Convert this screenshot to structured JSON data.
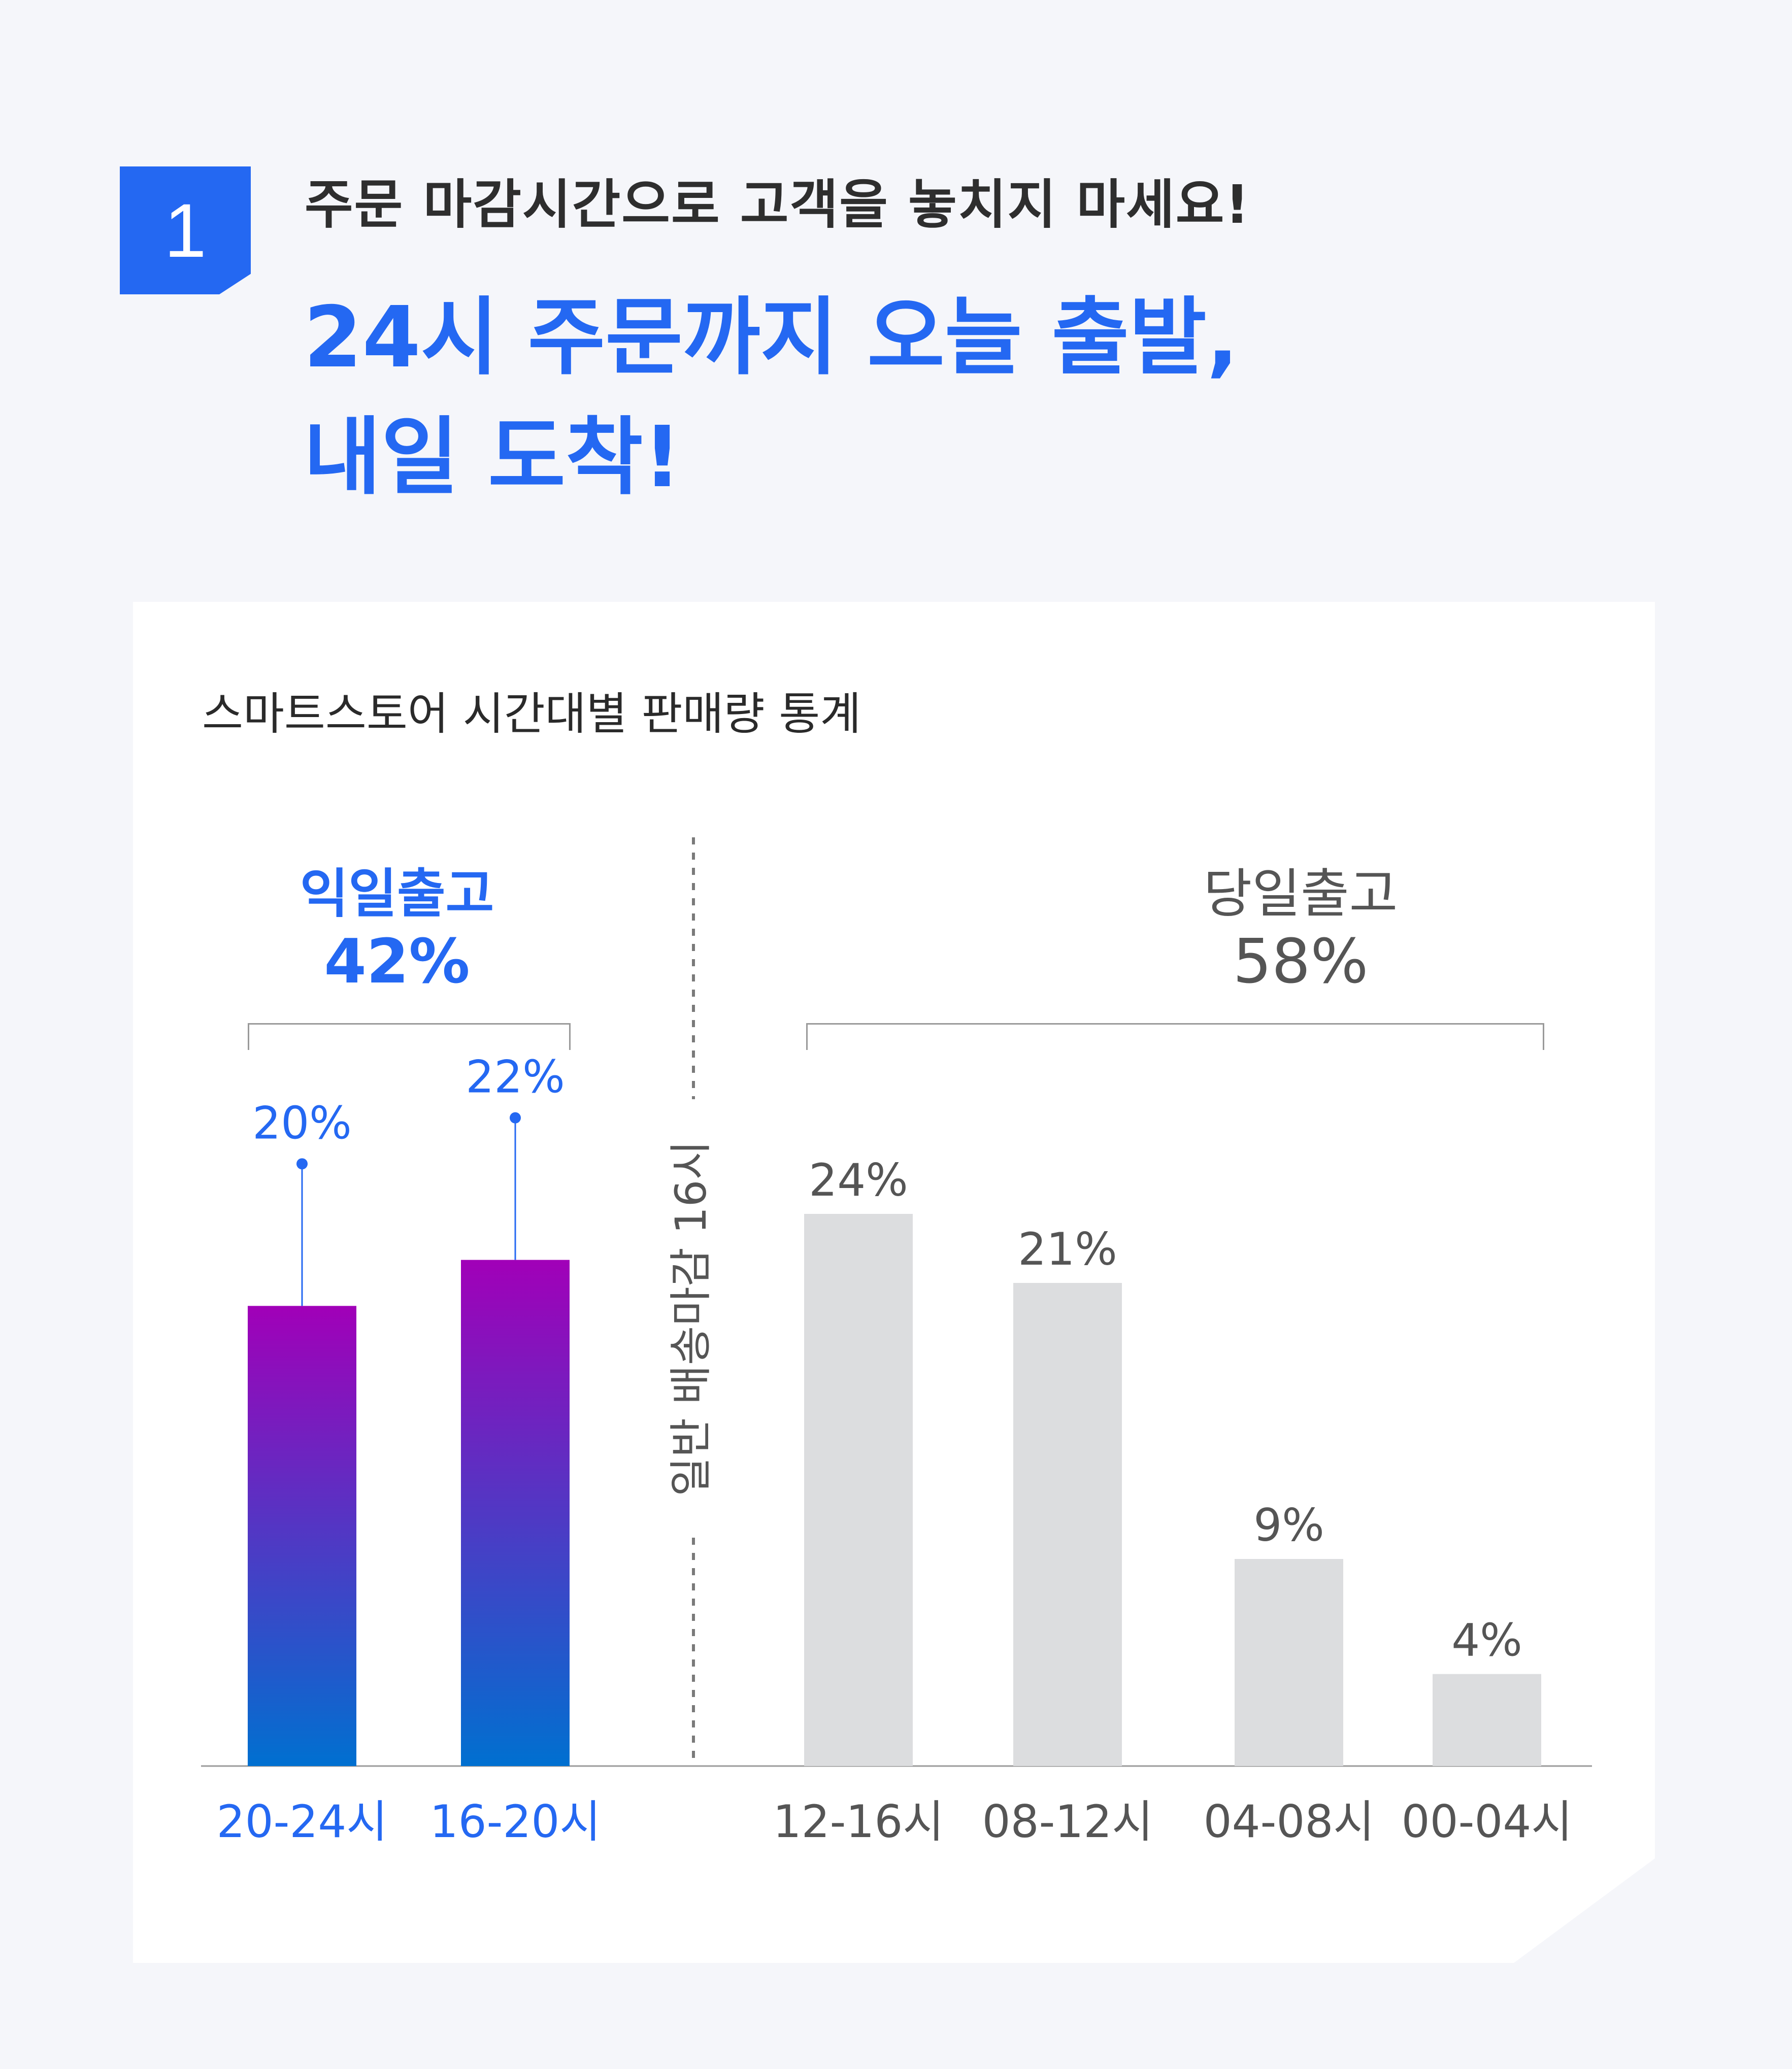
{
  "badge": "1",
  "subtitle": "주문 마감시간으로 고객을 놓치지 마세요!",
  "headline": [
    "24시 주문까지 오늘 출발,",
    "내일 도착!"
  ],
  "colors": {
    "accent": "#2468f2",
    "gradient_top": "#a100b8",
    "gradient_bottom": "#0070d0",
    "bar_gray": "#dcdddf",
    "text_gray": "#555555"
  },
  "chart_data": {
    "type": "bar",
    "title": "스마트스토어 시간대별 판매량 통계",
    "groups": [
      {
        "name": "익일출고",
        "percent_label": "42%",
        "highlight": true
      },
      {
        "name": "당일출고",
        "percent_label": "58%",
        "highlight": false
      }
    ],
    "categories": [
      "20-24시",
      "16-20시",
      "12-16시",
      "08-12시",
      "04-08시",
      "00-04시"
    ],
    "values": [
      20,
      22,
      24,
      21,
      9,
      4
    ],
    "value_labels": [
      "20%",
      "22%",
      "24%",
      "21%",
      "9%",
      "4%"
    ],
    "group_index": [
      0,
      0,
      1,
      1,
      1,
      1
    ],
    "divider_label": "일반 배송마감 16시",
    "ylim": [
      0,
      26
    ],
    "grid": false,
    "legend": "none"
  }
}
